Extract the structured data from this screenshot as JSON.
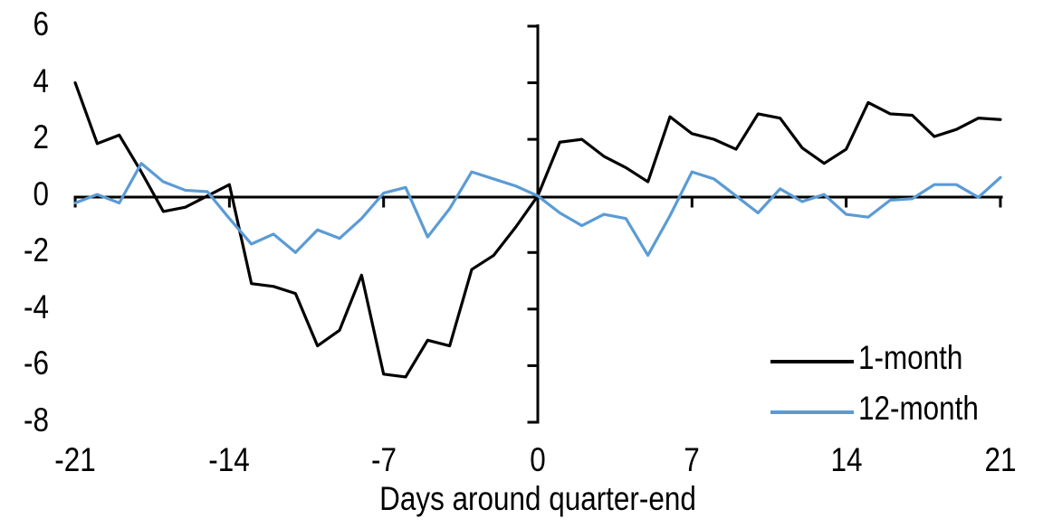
{
  "chart_data": {
    "type": "line",
    "title": "",
    "xlabel": "Days around quarter-end",
    "ylabel": "",
    "x": [
      -21,
      -20,
      -19,
      -18,
      -17,
      -16,
      -15,
      -14,
      -13,
      -12,
      -11,
      -10,
      -9,
      -8,
      -7,
      -6,
      -5,
      -4,
      -3,
      -2,
      -1,
      0,
      1,
      2,
      3,
      4,
      5,
      6,
      7,
      8,
      9,
      10,
      11,
      12,
      13,
      14,
      15,
      16,
      17,
      18,
      19,
      20,
      21
    ],
    "series": [
      {
        "name": "1-month",
        "color": "#000000",
        "values": [
          4.0,
          1.85,
          2.15,
          0.85,
          -0.55,
          -0.4,
          0.0,
          0.4,
          -3.1,
          -3.2,
          -3.45,
          -5.3,
          -4.75,
          -2.8,
          -6.3,
          -6.4,
          -5.1,
          -5.3,
          -2.6,
          -2.1,
          -1.1,
          0.0,
          1.9,
          2.0,
          1.4,
          1.0,
          0.5,
          2.8,
          2.2,
          2.0,
          1.65,
          2.9,
          2.75,
          1.7,
          1.15,
          1.65,
          3.3,
          2.9,
          2.85,
          2.1,
          2.35,
          2.75,
          2.7
        ]
      },
      {
        "name": "12-month",
        "color": "#5B9BD5",
        "values": [
          -0.25,
          0.05,
          -0.25,
          1.15,
          0.5,
          0.2,
          0.15,
          -0.8,
          -1.7,
          -1.35,
          -2.0,
          -1.2,
          -1.5,
          -0.8,
          0.1,
          0.3,
          -1.45,
          -0.45,
          0.85,
          0.6,
          0.35,
          0.0,
          -0.6,
          -1.05,
          -0.65,
          -0.8,
          -2.1,
          -0.7,
          0.85,
          0.6,
          0.0,
          -0.6,
          0.25,
          -0.2,
          0.05,
          -0.65,
          -0.75,
          -0.15,
          -0.1,
          0.4,
          0.4,
          -0.05,
          0.65
        ]
      }
    ],
    "xlim": [
      -21,
      21
    ],
    "ylim": [
      -8,
      6
    ],
    "x_tick_labels": [
      "-21",
      "-14",
      "-7",
      "0",
      "7",
      "14",
      "21"
    ],
    "x_tick_values": [
      -21,
      -14,
      -7,
      0,
      7,
      14,
      21
    ],
    "y_tick_labels": [
      "6",
      "4",
      "2",
      "0",
      "-2",
      "-4",
      "-6",
      "-8"
    ],
    "y_tick_values": [
      6,
      4,
      2,
      0,
      -2,
      -4,
      -6,
      -8
    ],
    "grid": "off",
    "legend_position": "inside-lower-right",
    "axis_color": "#000000",
    "background_color": "#FFFFFF"
  }
}
